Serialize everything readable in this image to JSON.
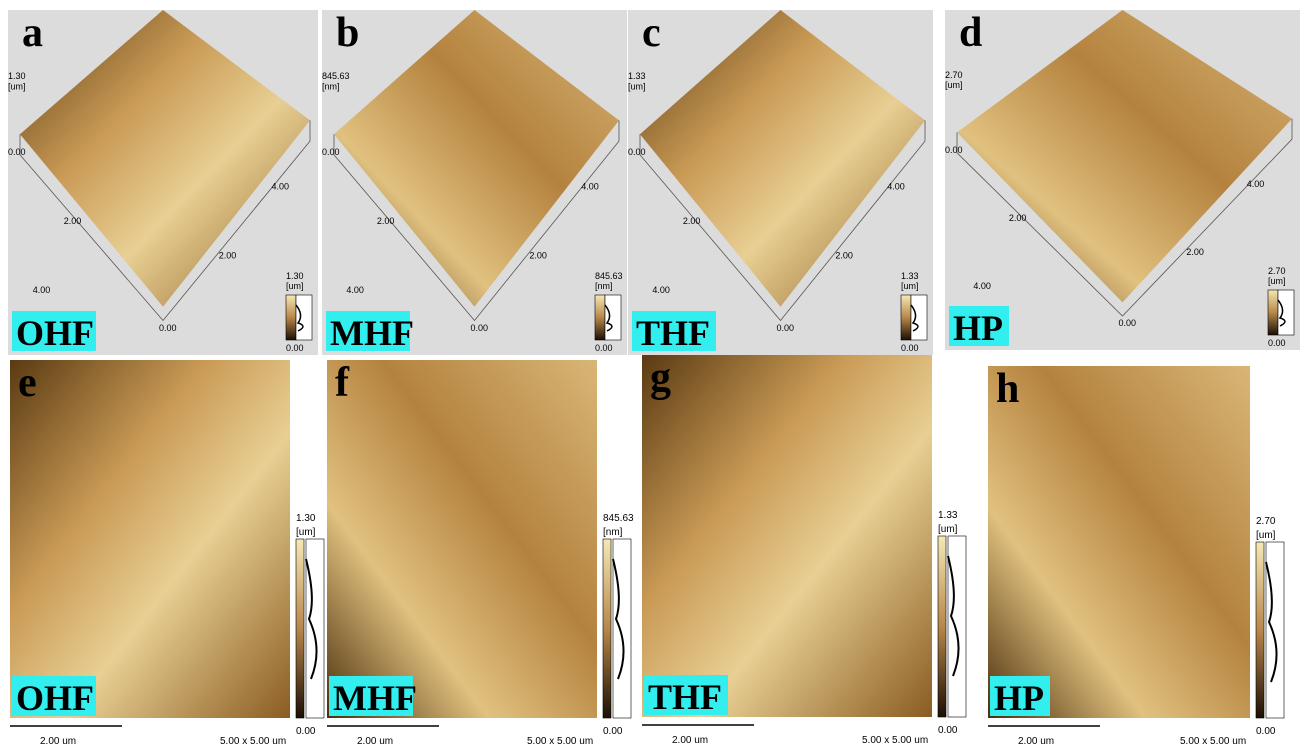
{
  "top_panels": [
    {
      "letter": "a",
      "sample": "OHF",
      "z_axis": [
        "1.30",
        "[um]",
        "0.00"
      ],
      "xy_ticks": [
        "2.00",
        "4.00",
        "0.00",
        "2.00",
        "4.00"
      ],
      "colorbar": [
        "1.30",
        "[um]",
        "0.00"
      ]
    },
    {
      "letter": "b",
      "sample": "MHF",
      "z_axis": [
        "845.63",
        "[nm]",
        "0.00"
      ],
      "xy_ticks": [
        "2.00",
        "4.00",
        "0.00",
        "2.00",
        "4.00"
      ],
      "colorbar": [
        "845.63",
        "[nm]",
        "0.00"
      ]
    },
    {
      "letter": "c",
      "sample": "THF",
      "z_axis": [
        "1.33",
        "[um]",
        "0.00"
      ],
      "xy_ticks": [
        "2.00",
        "4.00",
        "0.00",
        "2.00",
        "4.00"
      ],
      "colorbar": [
        "1.33",
        "[um]",
        "0.00"
      ]
    },
    {
      "letter": "d",
      "sample": "HP",
      "z_axis": [
        "2.70",
        "[um]",
        "0.00"
      ],
      "xy_ticks": [
        "2.00",
        "4.00",
        "0.00",
        "2.00",
        "4.00"
      ],
      "colorbar": [
        "2.70",
        "[um]",
        "0.00"
      ]
    }
  ],
  "bottom_panels": [
    {
      "letter": "e",
      "sample": "OHF",
      "colorbar": [
        "1.30",
        "[um]",
        "0.00"
      ],
      "scale_bar": "2.00 um",
      "scan_size": "5.00 x 5.00 um"
    },
    {
      "letter": "f",
      "sample": "MHF",
      "colorbar": [
        "845.63",
        "[nm]",
        "0.00"
      ],
      "scale_bar": "2.00 um",
      "scan_size": "5.00 x 5.00 um"
    },
    {
      "letter": "g",
      "sample": "THF",
      "colorbar": [
        "1.33",
        "[um]",
        "0.00"
      ],
      "scale_bar": "2.00 um",
      "scan_size": "5.00 x 5.00 um"
    },
    {
      "letter": "h",
      "sample": "HP",
      "colorbar": [
        "2.70",
        "[um]",
        "0.00"
      ],
      "scale_bar": "2.00 um",
      "scan_size": "5.00 x 5.00 um"
    }
  ]
}
